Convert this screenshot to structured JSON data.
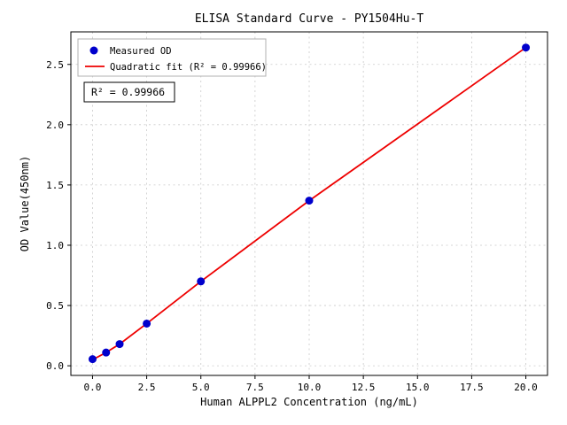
{
  "chart_data": {
    "type": "scatter",
    "title": "ELISA Standard Curve - PY1504Hu-T",
    "xlabel": "Human ALPPL2 Concentration (ng/mL)",
    "ylabel": "OD Value(450nm)",
    "xlim": [
      -1,
      21
    ],
    "ylim": [
      -0.08,
      2.77
    ],
    "xticks": [
      0.0,
      2.5,
      5.0,
      7.5,
      10.0,
      12.5,
      15.0,
      17.5,
      20.0
    ],
    "yticks": [
      0.0,
      0.5,
      1.0,
      1.5,
      2.0,
      2.5
    ],
    "grid": true,
    "annotation": "R² = 0.99966",
    "legend": {
      "position": "upper-left",
      "entries": [
        {
          "label": "Measured OD",
          "type": "point",
          "color": "#0000cc"
        },
        {
          "label": "Quadratic fit (R² = 0.99966)",
          "type": "line",
          "color": "#ee0000"
        }
      ]
    },
    "series": [
      {
        "name": "Measured OD",
        "type": "scatter",
        "color": "#0000cc",
        "x": [
          0,
          0.625,
          1.25,
          2.5,
          5,
          10,
          20
        ],
        "y": [
          0.055,
          0.11,
          0.18,
          0.35,
          0.7,
          1.37,
          2.64
        ]
      },
      {
        "name": "Quadratic fit",
        "type": "line",
        "color": "#ee0000",
        "x": [
          0,
          0.625,
          1.25,
          2.5,
          5,
          10,
          20
        ],
        "y": [
          0.05,
          0.11,
          0.18,
          0.35,
          0.7,
          1.37,
          2.64
        ]
      }
    ]
  }
}
